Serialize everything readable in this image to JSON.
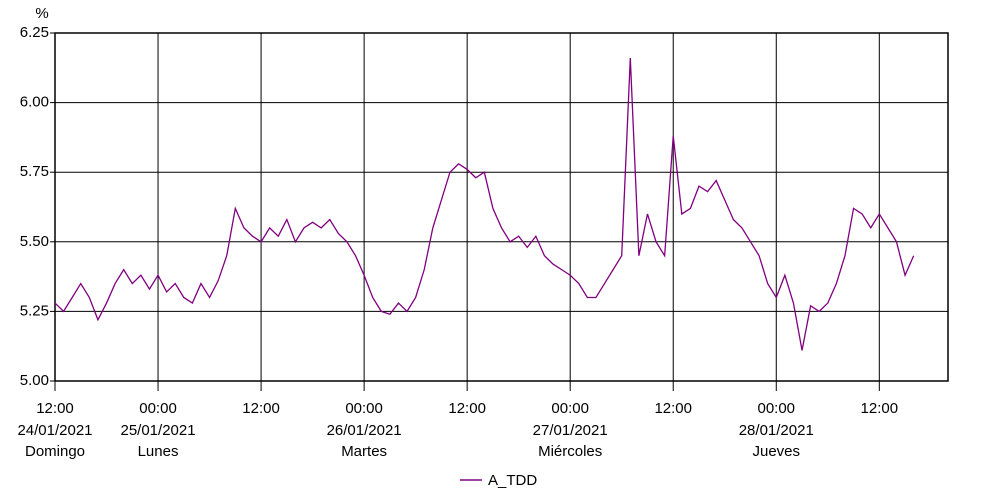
{
  "chart_data": {
    "type": "line",
    "y_label": "%",
    "ylim": [
      5.0,
      6.25
    ],
    "yticks": [
      6.25,
      {
        "value": 6.0,
        "label": "6.00"
      },
      5.75,
      {
        "value": 5.5,
        "label": "5.50"
      },
      5.25,
      {
        "value": 5.0,
        "label": "5.00"
      }
    ],
    "xlim": [
      0,
      104
    ],
    "xticks": [
      {
        "value": 0,
        "label": "12:00"
      },
      {
        "value": 12,
        "label": "00:00"
      },
      {
        "value": 24,
        "label": "12:00"
      },
      {
        "value": 36,
        "label": "00:00"
      },
      {
        "value": 48,
        "label": "12:00"
      },
      {
        "value": 60,
        "label": "00:00"
      },
      {
        "value": 72,
        "label": "12:00"
      },
      {
        "value": 84,
        "label": "00:00"
      },
      {
        "value": 96,
        "label": "12:00"
      }
    ],
    "day_labels": [
      {
        "value": 0,
        "date": "24/01/2021",
        "day": "Domingo"
      },
      {
        "value": 12,
        "date": "25/01/2021",
        "day": "Lunes"
      },
      {
        "value": 36,
        "date": "26/01/2021",
        "day": "Martes"
      },
      {
        "value": 60,
        "date": "27/01/2021",
        "day": "Miércoles"
      },
      {
        "value": 84,
        "date": "28/01/2021",
        "day": "Jueves"
      }
    ],
    "grid": true,
    "legend": "bottom",
    "x": [
      0,
      1,
      2,
      3,
      4,
      5,
      6,
      7,
      8,
      9,
      10,
      11,
      12,
      13,
      14,
      15,
      16,
      17,
      18,
      19,
      20,
      21,
      22,
      23,
      24,
      25,
      26,
      27,
      28,
      29,
      30,
      31,
      32,
      33,
      34,
      35,
      36,
      37,
      38,
      39,
      40,
      41,
      42,
      43,
      44,
      45,
      46,
      47,
      48,
      49,
      50,
      51,
      52,
      53,
      54,
      55,
      56,
      57,
      58,
      59,
      60,
      61,
      62,
      63,
      64,
      65,
      66,
      67,
      68,
      69,
      70,
      71,
      72,
      73,
      74,
      75,
      76,
      77,
      78,
      79,
      80,
      81,
      82,
      83,
      84,
      85,
      86,
      87,
      88,
      89,
      90,
      91,
      92,
      93,
      94,
      95,
      96,
      97,
      98,
      99,
      100
    ],
    "series": [
      {
        "name": "A_TDD",
        "color": "#800080",
        "values": [
          5.28,
          5.25,
          5.3,
          5.35,
          5.3,
          5.22,
          5.28,
          5.35,
          5.4,
          5.35,
          5.38,
          5.33,
          5.38,
          5.32,
          5.35,
          5.3,
          5.28,
          5.35,
          5.3,
          5.36,
          5.45,
          5.62,
          5.55,
          5.52,
          5.5,
          5.55,
          5.52,
          5.58,
          5.5,
          5.55,
          5.57,
          5.55,
          5.58,
          5.53,
          5.5,
          5.45,
          5.38,
          5.3,
          5.25,
          5.24,
          5.28,
          5.25,
          5.3,
          5.4,
          5.55,
          5.65,
          5.75,
          5.78,
          5.76,
          5.73,
          5.75,
          5.62,
          5.55,
          5.5,
          5.52,
          5.48,
          5.52,
          5.45,
          5.42,
          5.4,
          5.38,
          5.35,
          5.3,
          5.3,
          5.35,
          5.4,
          5.45,
          6.16,
          5.45,
          5.6,
          5.5,
          5.45,
          5.88,
          5.6,
          5.62,
          5.7,
          5.68,
          5.72,
          5.65,
          5.58,
          5.55,
          5.5,
          5.45,
          5.35,
          5.3,
          5.38,
          5.28,
          5.11,
          5.27,
          5.25,
          5.28,
          5.35,
          5.45,
          5.62,
          5.6,
          5.55,
          5.6,
          5.55,
          5.5,
          5.38,
          5.45
        ]
      }
    ]
  }
}
